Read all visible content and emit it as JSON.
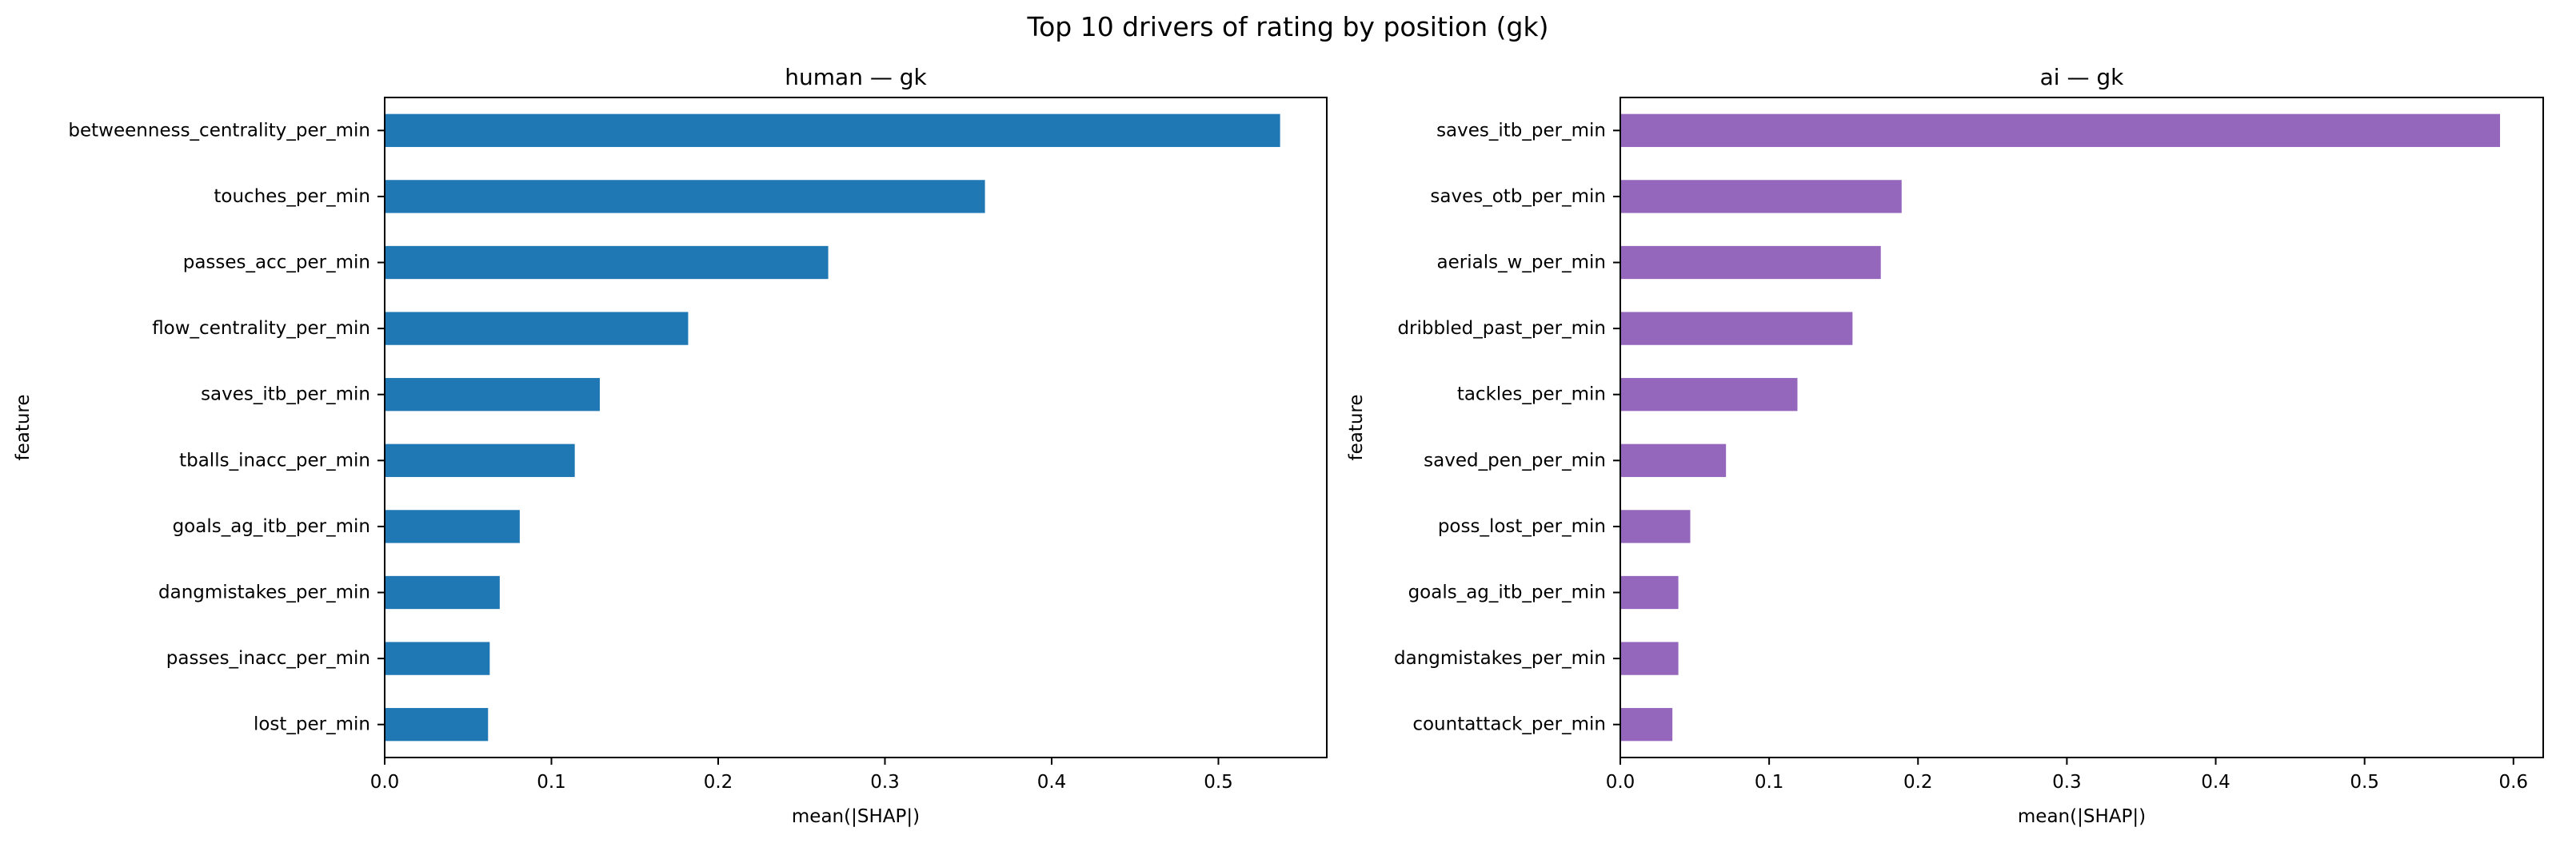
{
  "figure": {
    "title": "Top 10 drivers of rating by position (gk)"
  },
  "chart_data": [
    {
      "type": "bar",
      "orientation": "horizontal",
      "title": "human — gk",
      "xlabel": "mean(|SHAP|)",
      "ylabel": "feature",
      "xlim": [
        0,
        0.565
      ],
      "xticks": [
        0.0,
        0.1,
        0.2,
        0.3,
        0.4,
        0.5
      ],
      "xtick_labels": [
        "0.0",
        "0.1",
        "0.2",
        "0.3",
        "0.4",
        "0.5"
      ],
      "grid": false,
      "color": "#1f77b4",
      "categories": [
        "betweenness_centrality_per_min",
        "touches_per_min",
        "passes_acc_per_min",
        "flow_centrality_per_min",
        "saves_itb_per_min",
        "tballs_inacc_per_min",
        "goals_ag_itb_per_min",
        "dangmistakes_per_min",
        "passes_inacc_per_min",
        "lost_per_min"
      ],
      "values": [
        0.537,
        0.36,
        0.266,
        0.182,
        0.129,
        0.114,
        0.081,
        0.069,
        0.063,
        0.062
      ]
    },
    {
      "type": "bar",
      "orientation": "horizontal",
      "title": "ai — gk",
      "xlabel": "mean(|SHAP|)",
      "ylabel": "feature",
      "xlim": [
        0,
        0.62
      ],
      "xticks": [
        0.0,
        0.1,
        0.2,
        0.3,
        0.4,
        0.5,
        0.6
      ],
      "xtick_labels": [
        "0.0",
        "0.1",
        "0.2",
        "0.3",
        "0.4",
        "0.5",
        "0.6"
      ],
      "grid": false,
      "color": "#9467bd",
      "categories": [
        "saves_itb_per_min",
        "saves_otb_per_min",
        "aerials_w_per_min",
        "dribbled_past_per_min",
        "tackles_per_min",
        "saved_pen_per_min",
        "poss_lost_per_min",
        "goals_ag_itb_per_min",
        "dangmistakes_per_min",
        "countattack_per_min"
      ],
      "values": [
        0.591,
        0.189,
        0.175,
        0.156,
        0.119,
        0.071,
        0.047,
        0.039,
        0.039,
        0.035
      ]
    }
  ]
}
